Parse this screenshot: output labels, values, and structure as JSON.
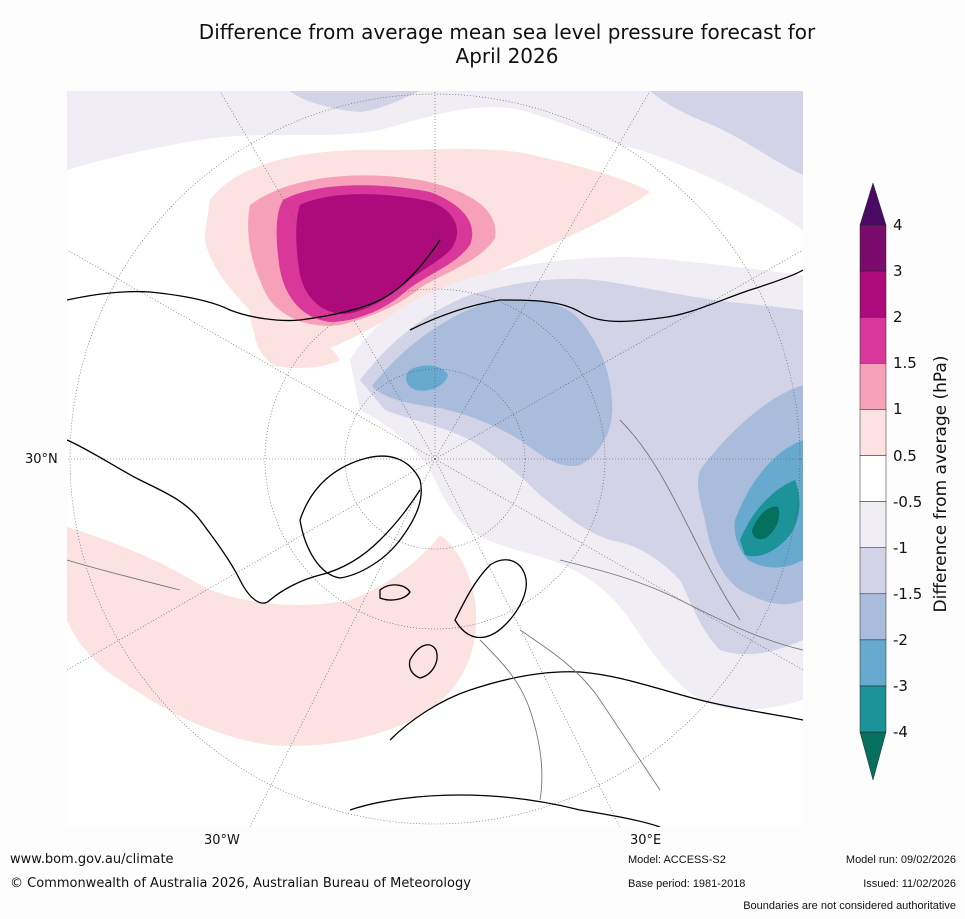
{
  "title": {
    "line1": "Difference from average mean sea level pressure forecast for",
    "line2": "April 2026"
  },
  "map": {
    "lat_label": "30°N",
    "lon_labels": {
      "west": "30°W",
      "east": "30°E"
    },
    "regions": [
      {
        "name": "north-pacific-high-anomaly",
        "category": "above",
        "max_value": 3
      },
      {
        "name": "atlantic-positive-anomaly",
        "category": "above",
        "max_value": 1
      },
      {
        "name": "arctic-siberia-negative-anomaly",
        "category": "below",
        "min_value": -2
      },
      {
        "name": "east-asia-low-anomaly",
        "category": "below",
        "min_value": -4
      }
    ]
  },
  "colorbar": {
    "title": "Difference from average (hPa)",
    "ticks": [
      "4",
      "3",
      "2",
      "1.5",
      "1",
      "0.5",
      "-0.5",
      "-1",
      "-1.5",
      "-2",
      "-3",
      "-4"
    ],
    "colors": {
      "over": "#4a0a63",
      "c3to4": "#7a0a6b",
      "c2to3": "#ad0a7c",
      "c15to2": "#d9389a",
      "c1to15": "#f6a1b9",
      "c05to1": "#fde2e2",
      "neutral": "#ffffff",
      "cm05tom1": "#f0edf4",
      "cm1tom15": "#d2d3e6",
      "cm15tom2": "#a9bcdb",
      "cm2tom3": "#68aacf",
      "cm3tom4": "#1c9299",
      "under": "#06705e"
    }
  },
  "footer": {
    "website": "www.bom.gov.au/climate",
    "copyright": "© Commonwealth of Australia 2026, Australian Bureau of Meteorology",
    "model": "Model: ACCESS-S2",
    "base_period": "Base period: 1981-2018",
    "model_run": "Model run: 09/02/2026",
    "issued": "Issued: 11/02/2026",
    "disclaimer": "Boundaries are not considered authoritative"
  }
}
